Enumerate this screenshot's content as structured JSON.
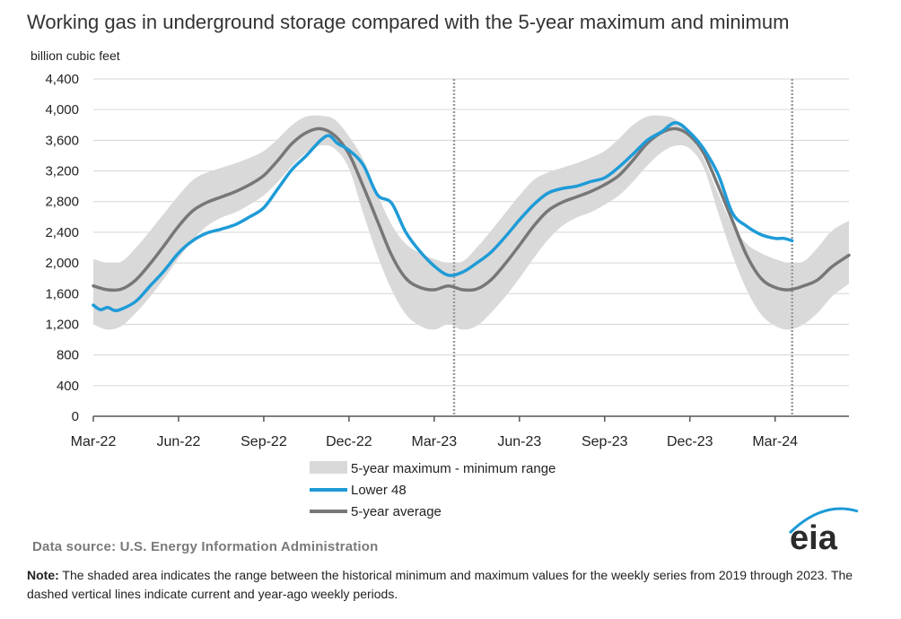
{
  "title": "Working gas in underground  storage compared with the 5-year maximum and minimum",
  "ylabel": "billion cubic feet",
  "source": "Data source:  U.S. Energy Information Administration",
  "note": {
    "label": "Note:",
    "text": " The shaded area indicates the range between the historical minimum and maximum values for the weekly series from 2019 through 2023. The dashed vertical lines indicate current and year-ago weekly periods."
  },
  "logo_text": "eia",
  "colors": {
    "lower48": "#1f9bd7",
    "average": "#777777",
    "range": "#d9d9d9",
    "logo_text": "#2b2b2b",
    "logo_arc": "#1b9ad6"
  },
  "chart_data": {
    "type": "line",
    "x_unit": "months since Mar-22",
    "x_ticks": [
      {
        "x": 0,
        "label": "Mar-22"
      },
      {
        "x": 3,
        "label": "Jun-22"
      },
      {
        "x": 6,
        "label": "Sep-22"
      },
      {
        "x": 9,
        "label": "Dec-22"
      },
      {
        "x": 12,
        "label": "Mar-23"
      },
      {
        "x": 15,
        "label": "Jun-23"
      },
      {
        "x": 18,
        "label": "Sep-23"
      },
      {
        "x": 21,
        "label": "Dec-23"
      },
      {
        "x": 24,
        "label": "Mar-24"
      }
    ],
    "xlim": [
      0,
      26.6
    ],
    "ylim": [
      0,
      4400
    ],
    "y_ticks": [
      {
        "value": 0,
        "label": "0"
      },
      {
        "value": 400,
        "label": "400"
      },
      {
        "value": 800,
        "label": "800"
      },
      {
        "value": 1200,
        "label": "1,200"
      },
      {
        "value": 1600,
        "label": "1,600"
      },
      {
        "value": 2000,
        "label": "2,000"
      },
      {
        "value": 2400,
        "label": "2,400"
      },
      {
        "value": 2800,
        "label": "2,800"
      },
      {
        "value": 3200,
        "label": "3,200"
      },
      {
        "value": 3600,
        "label": "3,600"
      },
      {
        "value": 4000,
        "label": "4,000"
      },
      {
        "value": 4400,
        "label": "4,400"
      }
    ],
    "grid": true,
    "legend_position": "bottom",
    "vlines": [
      12.7,
      24.6
    ],
    "range": {
      "name": "5-year maximum - minimum range",
      "x": [
        0,
        0.5,
        1,
        1.5,
        2,
        2.5,
        3,
        3.5,
        4,
        4.5,
        5,
        5.5,
        6,
        6.5,
        7,
        7.5,
        8,
        8.5,
        9,
        9.5,
        10,
        10.5,
        11,
        11.5,
        12,
        12.5,
        13,
        13.5,
        14,
        14.5,
        15,
        15.5,
        16,
        16.5,
        17,
        17.5,
        18,
        18.5,
        19,
        19.5,
        20,
        20.5,
        21,
        21.5,
        22,
        22.5,
        23,
        23.5,
        24,
        24.5,
        25,
        25.5,
        26,
        26.6
      ],
      "max": [
        2050,
        2000,
        2020,
        2200,
        2420,
        2650,
        2880,
        3080,
        3180,
        3240,
        3300,
        3370,
        3460,
        3620,
        3800,
        3910,
        3920,
        3870,
        3650,
        3350,
        2900,
        2500,
        2250,
        2130,
        2050,
        2000,
        2020,
        2200,
        2420,
        2650,
        2880,
        3080,
        3180,
        3240,
        3300,
        3370,
        3460,
        3620,
        3800,
        3910,
        3920,
        3870,
        3650,
        3350,
        2900,
        2500,
        2250,
        2130,
        2050,
        2000,
        2020,
        2200,
        2420,
        2550
      ],
      "min": [
        1200,
        1130,
        1180,
        1350,
        1560,
        1800,
        2060,
        2300,
        2480,
        2590,
        2660,
        2760,
        2880,
        3060,
        3270,
        3440,
        3530,
        3490,
        3230,
        2650,
        2100,
        1650,
        1330,
        1180,
        1130,
        1200,
        1130,
        1180,
        1350,
        1560,
        1800,
        2060,
        2300,
        2480,
        2590,
        2660,
        2760,
        2880,
        3060,
        3270,
        3440,
        3530,
        3490,
        3230,
        2650,
        2100,
        1650,
        1330,
        1180,
        1130,
        1200,
        1350,
        1560,
        1730
      ]
    },
    "series": [
      {
        "name": "Lower 48",
        "x": [
          0,
          0.25,
          0.5,
          0.75,
          1,
          1.5,
          2,
          2.5,
          3,
          3.5,
          4,
          4.5,
          5,
          5.5,
          6,
          6.5,
          7,
          7.5,
          8,
          8.3,
          8.6,
          9,
          9.5,
          10,
          10.5,
          11,
          11.5,
          12,
          12.5,
          13,
          13.5,
          14,
          14.5,
          15,
          15.5,
          16,
          16.5,
          17,
          17.5,
          18,
          18.5,
          19,
          19.5,
          20,
          20.5,
          21,
          21.5,
          22,
          22.5,
          23,
          23.5,
          24,
          24.3,
          24.6
        ],
        "y": [
          1450,
          1390,
          1420,
          1380,
          1400,
          1500,
          1700,
          1900,
          2130,
          2290,
          2390,
          2440,
          2500,
          2600,
          2720,
          2970,
          3220,
          3400,
          3600,
          3660,
          3560,
          3470,
          3280,
          2890,
          2780,
          2400,
          2150,
          1960,
          1840,
          1880,
          2000,
          2140,
          2340,
          2560,
          2760,
          2910,
          2970,
          3000,
          3060,
          3110,
          3250,
          3420,
          3600,
          3710,
          3830,
          3700,
          3480,
          3150,
          2650,
          2480,
          2370,
          2320,
          2320,
          2290
        ]
      },
      {
        "name": "5-year average",
        "x": [
          0,
          0.5,
          1,
          1.5,
          2,
          2.5,
          3,
          3.5,
          4,
          4.5,
          5,
          5.5,
          6,
          6.5,
          7,
          7.5,
          8,
          8.5,
          9,
          9.5,
          10,
          10.5,
          11,
          11.5,
          12,
          12.5,
          13,
          13.5,
          14,
          14.5,
          15,
          15.5,
          16,
          16.5,
          17,
          17.5,
          18,
          18.5,
          19,
          19.5,
          20,
          20.5,
          21,
          21.5,
          22,
          22.5,
          23,
          23.5,
          24,
          24.5,
          25,
          25.5,
          26,
          26.6
        ],
        "y": [
          1700,
          1650,
          1660,
          1780,
          1990,
          2230,
          2480,
          2680,
          2790,
          2860,
          2930,
          3020,
          3140,
          3340,
          3560,
          3700,
          3750,
          3660,
          3420,
          3000,
          2550,
          2100,
          1800,
          1680,
          1650,
          1700,
          1650,
          1660,
          1780,
          1990,
          2230,
          2480,
          2680,
          2790,
          2860,
          2930,
          3020,
          3140,
          3340,
          3560,
          3700,
          3750,
          3660,
          3420,
          3000,
          2550,
          2100,
          1800,
          1680,
          1650,
          1700,
          1780,
          1950,
          2100
        ]
      }
    ]
  }
}
